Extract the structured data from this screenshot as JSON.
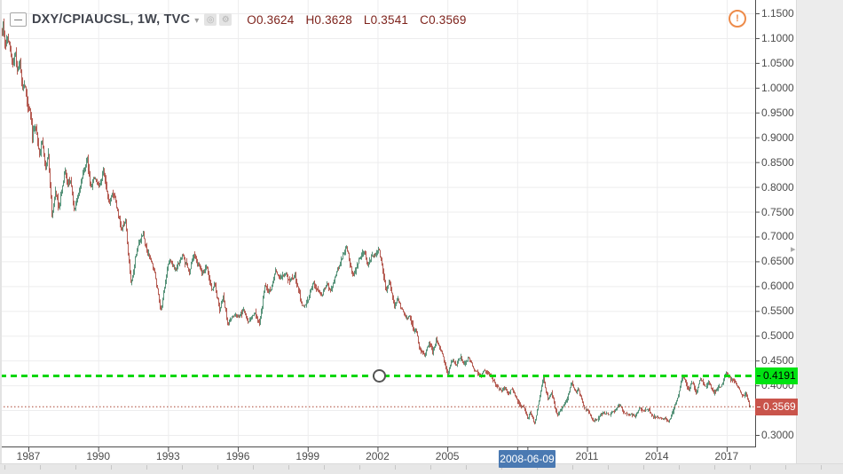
{
  "header": {
    "symbol_title": "DXY/CPIAUCSL, 1W, TVC",
    "dropdown_caret": "▾",
    "icons": {
      "eye": "◎",
      "gear": "⚙"
    },
    "ohlc": {
      "open_label": "O",
      "open": "0.3624",
      "high_label": "H",
      "high": "0.3628",
      "low_label": "L",
      "low": "0.3541",
      "close_label": "C",
      "close": "0.3569"
    }
  },
  "alert_icon": {
    "glyph": "!"
  },
  "price_scale": {
    "labels": [
      "1.1500",
      "1.1000",
      "1.0500",
      "1.0000",
      "0.9500",
      "0.9000",
      "0.8500",
      "0.8000",
      "0.7500",
      "0.7000",
      "0.6500",
      "0.6000",
      "0.5500",
      "0.5000",
      "0.4500",
      "0.4000",
      "0.3000"
    ]
  },
  "time_scale": {
    "labels": [
      "1987",
      "1990",
      "1993",
      "1996",
      "1999",
      "2002",
      "2005",
      "2011",
      "2014",
      "2017"
    ],
    "date_badge": "2008-06-09"
  },
  "levels": {
    "alert_line": {
      "label": "0.4191",
      "value": 0.4191
    },
    "last_price": {
      "label": "0.3569",
      "value": 0.3569
    }
  },
  "colors": {
    "up": "#4f8e74",
    "down": "#b2544b",
    "grid": "#ededee",
    "axis": "#4d4d4d",
    "label": "#4c4c4c",
    "ohlc_text": "#7e231c",
    "alert_green_line": "#00d60b",
    "alert_green_badge": "#00e312",
    "last_red_line": "#aa4433",
    "last_red_badge": "#c9544b",
    "date_badge_blue": "#4a79b2",
    "alert_orange": "#ed8b4a"
  },
  "chart_data": {
    "type": "candlestick",
    "symbol": "DXY/CPIAUCSL",
    "interval": "1W",
    "exchange": "TVC",
    "ohlc_current": {
      "open": 0.3624,
      "high": 0.3628,
      "low": 0.3541,
      "close": 0.3569
    },
    "y_axis": {
      "min": 0.285,
      "max": 1.177,
      "tick_step": 0.05,
      "ticks": [
        0.3,
        0.35,
        0.4,
        0.45,
        0.5,
        0.55,
        0.6,
        0.65,
        0.7,
        0.75,
        0.8,
        0.85,
        0.9,
        0.95,
        1.0,
        1.05,
        1.1,
        1.15
      ]
    },
    "x_axis": {
      "start_year": 1985.83,
      "end_year": 2018.0,
      "gridline_years": [
        1987,
        1990,
        1993,
        1996,
        1999,
        2002,
        2005,
        2008,
        2011,
        2014,
        2017
      ],
      "highlight_date": "2008-06-09",
      "highlight_year": 2008.44
    },
    "levels": {
      "horizontal_alert_line": 0.4191,
      "last_price": 0.3569
    },
    "trend": [
      [
        1985.83,
        1.118
      ],
      [
        1985.9,
        1.13
      ],
      [
        1986.0,
        1.085
      ],
      [
        1986.1,
        1.1
      ],
      [
        1986.3,
        1.045
      ],
      [
        1986.42,
        1.065
      ],
      [
        1986.52,
        1.02
      ],
      [
        1986.62,
        1.047
      ],
      [
        1986.72,
        0.99
      ],
      [
        1986.82,
        1.012
      ],
      [
        1986.95,
        0.975
      ],
      [
        1987.05,
        0.945
      ],
      [
        1987.15,
        0.903
      ],
      [
        1987.3,
        0.928
      ],
      [
        1987.45,
        0.872
      ],
      [
        1987.58,
        0.893
      ],
      [
        1987.7,
        0.838
      ],
      [
        1987.85,
        0.86
      ],
      [
        1988.0,
        0.733
      ],
      [
        1988.15,
        0.79
      ],
      [
        1988.28,
        0.755
      ],
      [
        1988.55,
        0.833
      ],
      [
        1988.68,
        0.8
      ],
      [
        1988.8,
        0.82
      ],
      [
        1988.95,
        0.75
      ],
      [
        1989.2,
        0.802
      ],
      [
        1989.5,
        0.857
      ],
      [
        1989.65,
        0.8
      ],
      [
        1989.8,
        0.818
      ],
      [
        1990.0,
        0.798
      ],
      [
        1990.2,
        0.828
      ],
      [
        1990.45,
        0.77
      ],
      [
        1990.6,
        0.792
      ],
      [
        1991.0,
        0.713
      ],
      [
        1991.15,
        0.733
      ],
      [
        1991.4,
        0.598
      ],
      [
        1991.6,
        0.665
      ],
      [
        1991.9,
        0.708
      ],
      [
        1992.1,
        0.668
      ],
      [
        1992.4,
        0.626
      ],
      [
        1992.7,
        0.551
      ],
      [
        1993.0,
        0.655
      ],
      [
        1993.3,
        0.636
      ],
      [
        1993.6,
        0.658
      ],
      [
        1993.9,
        0.632
      ],
      [
        1994.1,
        0.664
      ],
      [
        1994.45,
        0.626
      ],
      [
        1994.65,
        0.638
      ],
      [
        1994.85,
        0.592
      ],
      [
        1995.0,
        0.603
      ],
      [
        1995.2,
        0.552
      ],
      [
        1995.35,
        0.58
      ],
      [
        1995.55,
        0.525
      ],
      [
        1995.8,
        0.542
      ],
      [
        1996.05,
        0.537
      ],
      [
        1996.25,
        0.552
      ],
      [
        1996.45,
        0.528
      ],
      [
        1996.7,
        0.547
      ],
      [
        1996.9,
        0.524
      ],
      [
        1997.15,
        0.603
      ],
      [
        1997.4,
        0.588
      ],
      [
        1997.6,
        0.634
      ],
      [
        1997.8,
        0.609
      ],
      [
        1998.0,
        0.625
      ],
      [
        1998.2,
        0.61
      ],
      [
        1998.45,
        0.622
      ],
      [
        1998.7,
        0.565
      ],
      [
        1998.85,
        0.557
      ],
      [
        1999.25,
        0.609
      ],
      [
        1999.6,
        0.582
      ],
      [
        1999.8,
        0.601
      ],
      [
        1999.95,
        0.59
      ],
      [
        2000.3,
        0.634
      ],
      [
        2000.65,
        0.682
      ],
      [
        2000.8,
        0.642
      ],
      [
        2000.95,
        0.619
      ],
      [
        2001.2,
        0.658
      ],
      [
        2001.4,
        0.676
      ],
      [
        2001.55,
        0.64
      ],
      [
        2001.75,
        0.664
      ],
      [
        2002.05,
        0.673
      ],
      [
        2002.35,
        0.592
      ],
      [
        2002.5,
        0.61
      ],
      [
        2002.7,
        0.562
      ],
      [
        2002.85,
        0.574
      ],
      [
        2003.2,
        0.533
      ],
      [
        2003.35,
        0.545
      ],
      [
        2003.55,
        0.506
      ],
      [
        2003.65,
        0.516
      ],
      [
        2003.8,
        0.474
      ],
      [
        2004.0,
        0.462
      ],
      [
        2004.2,
        0.486
      ],
      [
        2004.35,
        0.468
      ],
      [
        2004.5,
        0.49
      ],
      [
        2004.75,
        0.462
      ],
      [
        2005.0,
        0.423
      ],
      [
        2005.2,
        0.452
      ],
      [
        2005.38,
        0.44
      ],
      [
        2005.55,
        0.458
      ],
      [
        2005.72,
        0.445
      ],
      [
        2005.9,
        0.457
      ],
      [
        2006.1,
        0.435
      ],
      [
        2006.4,
        0.416
      ],
      [
        2006.55,
        0.428
      ],
      [
        2006.75,
        0.421
      ],
      [
        2007.0,
        0.405
      ],
      [
        2007.3,
        0.389
      ],
      [
        2007.45,
        0.397
      ],
      [
        2007.6,
        0.384
      ],
      [
        2007.75,
        0.391
      ],
      [
        2008.1,
        0.36
      ],
      [
        2008.3,
        0.352
      ],
      [
        2008.45,
        0.333
      ],
      [
        2008.55,
        0.345
      ],
      [
        2008.75,
        0.322
      ],
      [
        2008.9,
        0.362
      ],
      [
        2009.1,
        0.416
      ],
      [
        2009.3,
        0.372
      ],
      [
        2009.45,
        0.384
      ],
      [
        2009.7,
        0.341
      ],
      [
        2009.9,
        0.353
      ],
      [
        2010.1,
        0.372
      ],
      [
        2010.35,
        0.405
      ],
      [
        2010.5,
        0.385
      ],
      [
        2010.62,
        0.393
      ],
      [
        2010.85,
        0.354
      ],
      [
        2011.0,
        0.349
      ],
      [
        2011.25,
        0.327
      ],
      [
        2011.45,
        0.333
      ],
      [
        2011.7,
        0.345
      ],
      [
        2011.9,
        0.34
      ],
      [
        2012.1,
        0.348
      ],
      [
        2012.4,
        0.359
      ],
      [
        2012.6,
        0.343
      ],
      [
        2012.85,
        0.342
      ],
      [
        2013.05,
        0.338
      ],
      [
        2013.25,
        0.357
      ],
      [
        2013.45,
        0.344
      ],
      [
        2013.6,
        0.354
      ],
      [
        2013.8,
        0.339
      ],
      [
        2014.0,
        0.336
      ],
      [
        2014.25,
        0.332
      ],
      [
        2014.5,
        0.329
      ],
      [
        2014.7,
        0.348
      ],
      [
        2014.85,
        0.372
      ],
      [
        2015.1,
        0.42
      ],
      [
        2015.35,
        0.392
      ],
      [
        2015.5,
        0.407
      ],
      [
        2015.68,
        0.386
      ],
      [
        2015.85,
        0.417
      ],
      [
        2016.05,
        0.395
      ],
      [
        2016.2,
        0.408
      ],
      [
        2016.42,
        0.384
      ],
      [
        2016.6,
        0.394
      ],
      [
        2016.78,
        0.403
      ],
      [
        2016.95,
        0.421
      ],
      [
        2017.1,
        0.416
      ],
      [
        2017.3,
        0.408
      ],
      [
        2017.5,
        0.396
      ],
      [
        2017.62,
        0.384
      ],
      [
        2017.72,
        0.377
      ],
      [
        2017.82,
        0.382
      ],
      [
        2017.92,
        0.371
      ],
      [
        2018.0,
        0.3569
      ]
    ]
  }
}
